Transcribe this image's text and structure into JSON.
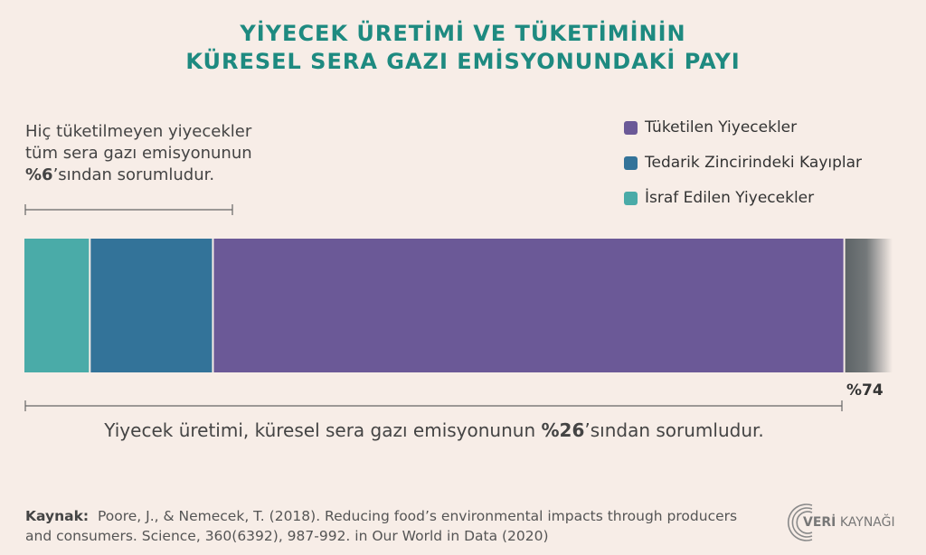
{
  "title": {
    "line1": "YİYECEK ÜRETİMİ VE TÜKETİMİNİN",
    "line2": "KÜRESEL SERA GAZI EMİSYONUNDAKİ PAYI"
  },
  "note": {
    "line1": "Hiç tüketilmeyen yiyecekler",
    "line2": "tüm sera gazı emisyonunun",
    "highlight": "%6",
    "line3_rest": "’sından sorumludur."
  },
  "summary": {
    "prefix": "Yiyecek üretimi, küresel sera gazı emisyonunun ",
    "highlight": "%26",
    "suffix": "’sından sorumludur."
  },
  "remaining_label": "%74",
  "source": {
    "label": "Kaynak:",
    "text": "Poore, J., & Nemecek, T. (2018). Reducing food’s environmental impacts through producers and consumers. Science, 360(6392), 987-992. in Our World in Data (2020)"
  },
  "logo": {
    "bold": "VERİ",
    "rest": "KAYNAĞI"
  },
  "colors": {
    "title": "#1e8a80",
    "wasted": "#4aaba8",
    "supply": "#337399",
    "consumed": "#6b5997",
    "other": "#5d6467"
  },
  "chart_data": {
    "type": "bar",
    "orientation": "horizontal-stacked",
    "series": [
      {
        "name": "İsraf Edilen Yiyecekler",
        "value": 2.1,
        "color": "#4aaba8"
      },
      {
        "name": "Tedarik Zincirindeki Kayıplar",
        "value": 3.9,
        "color": "#337399"
      },
      {
        "name": "Tüketilen Yiyecekler",
        "value": 20,
        "color": "#6b5997"
      },
      {
        "name": "",
        "value": 74,
        "color": "#5d6467"
      }
    ],
    "legend": [
      {
        "label": "Tüketilen Yiyecekler",
        "color": "#6b5997"
      },
      {
        "label": "Tedarik Zincirindeki Kayıplar",
        "color": "#337399"
      },
      {
        "label": "İsraf Edilen Yiyecekler",
        "color": "#4aaba8"
      }
    ],
    "legend_position": "top-right",
    "xlim": [
      0,
      100
    ],
    "visible_max": 27.5
  }
}
